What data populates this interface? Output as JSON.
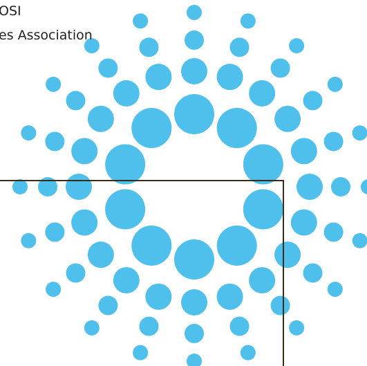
{
  "text": {
    "line1": "OSI",
    "line2": "es Association"
  }
}
